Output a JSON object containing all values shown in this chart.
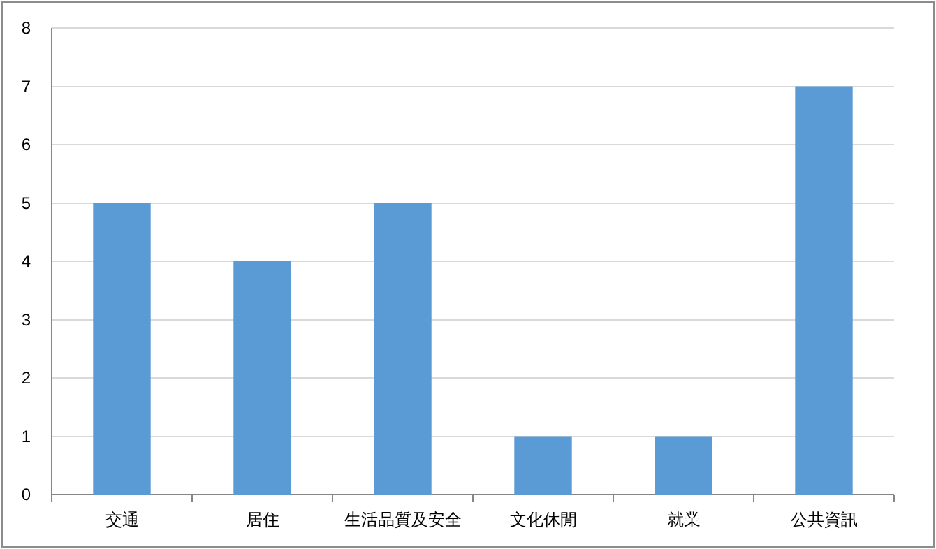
{
  "chart_data": {
    "type": "bar",
    "categories": [
      "交通",
      "居住",
      "生活品質及安全",
      "文化休閒",
      "就業",
      "公共資訊"
    ],
    "values": [
      5,
      4,
      5,
      1,
      1,
      7
    ],
    "color": "#5b9bd5",
    "ylim": [
      0,
      8
    ],
    "yticks": [
      0,
      1,
      2,
      3,
      4,
      5,
      6,
      7,
      8
    ],
    "grid": "y"
  }
}
